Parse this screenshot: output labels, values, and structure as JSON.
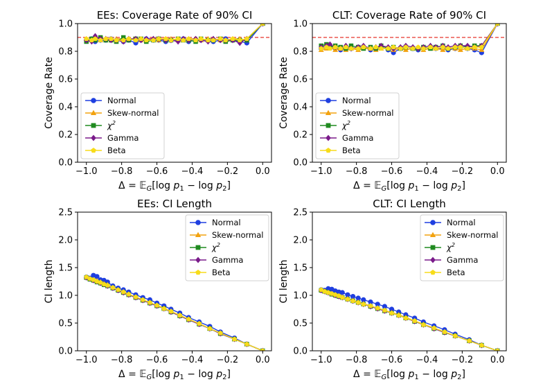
{
  "chart_data": [
    {
      "type": "line",
      "title": "EEs: Coverage Rate of 90% CI",
      "xlabel": "Δ = 𝔼G[log p₁ − log p₂]",
      "ylabel": "Coverage Rate",
      "xlim": [
        -1.05,
        0.05
      ],
      "ylim": [
        0.0,
        1.0
      ],
      "xticks": [
        -1.0,
        -0.8,
        -0.6,
        -0.4,
        -0.2,
        0.0
      ],
      "xtick_labels": [
        "−1.0",
        "−0.8",
        "−0.6",
        "−0.4",
        "−0.2",
        "0.0"
      ],
      "yticks": [
        0.0,
        0.2,
        0.4,
        0.6,
        0.8,
        1.0
      ],
      "ytick_labels": [
        "0.0",
        "0.2",
        "0.4",
        "0.6",
        "0.8",
        "1.0"
      ],
      "reference_line": {
        "y": 0.9,
        "style": "dashed",
        "color": "#e8342c"
      },
      "legend_position": "lower-left",
      "x": [
        -1.0,
        -0.97,
        -0.95,
        -0.92,
        -0.89,
        -0.86,
        -0.83,
        -0.79,
        -0.76,
        -0.72,
        -0.69,
        -0.66,
        -0.62,
        -0.59,
        -0.55,
        -0.52,
        -0.48,
        -0.45,
        -0.42,
        -0.38,
        -0.35,
        -0.31,
        -0.28,
        -0.24,
        -0.21,
        -0.17,
        -0.13,
        -0.09,
        0.0
      ],
      "series": [
        {
          "name": "Normal",
          "color": "#1f3fe0",
          "marker": "circle",
          "values": [
            0.88,
            0.89,
            0.87,
            0.88,
            0.88,
            0.89,
            0.88,
            0.87,
            0.88,
            0.86,
            0.88,
            0.89,
            0.88,
            0.88,
            0.87,
            0.88,
            0.88,
            0.89,
            0.87,
            0.88,
            0.88,
            0.88,
            0.87,
            0.88,
            0.89,
            0.88,
            0.87,
            0.86,
            1.0
          ]
        },
        {
          "name": "Skew-normal",
          "color": "#f2a20f",
          "marker": "triangle",
          "values": [
            0.89,
            0.88,
            0.9,
            0.88,
            0.89,
            0.88,
            0.89,
            0.89,
            0.88,
            0.89,
            0.88,
            0.88,
            0.89,
            0.88,
            0.89,
            0.89,
            0.88,
            0.88,
            0.89,
            0.89,
            0.88,
            0.89,
            0.89,
            0.88,
            0.88,
            0.89,
            0.89,
            0.88,
            1.0
          ]
        },
        {
          "name": "χ²",
          "color": "#1f8a1f",
          "marker": "square",
          "values": [
            0.87,
            0.89,
            0.88,
            0.9,
            0.88,
            0.88,
            0.87,
            0.9,
            0.88,
            0.89,
            0.89,
            0.87,
            0.88,
            0.89,
            0.88,
            0.88,
            0.89,
            0.88,
            0.88,
            0.87,
            0.89,
            0.88,
            0.88,
            0.89,
            0.87,
            0.88,
            0.88,
            0.88,
            1.0
          ]
        },
        {
          "name": "Gamma",
          "color": "#7a1a8a",
          "marker": "diamond",
          "values": [
            0.88,
            0.87,
            0.91,
            0.89,
            0.89,
            0.88,
            0.88,
            0.87,
            0.89,
            0.89,
            0.88,
            0.89,
            0.89,
            0.89,
            0.88,
            0.88,
            0.87,
            0.89,
            0.88,
            0.89,
            0.88,
            0.87,
            0.89,
            0.88,
            0.88,
            0.88,
            0.86,
            0.89,
            1.0
          ]
        },
        {
          "name": "Beta",
          "color": "#f7dc1a",
          "marker": "pentagon",
          "values": [
            0.89,
            0.88,
            0.89,
            0.88,
            0.89,
            0.89,
            0.88,
            0.88,
            0.89,
            0.88,
            0.89,
            0.88,
            0.88,
            0.89,
            0.89,
            0.88,
            0.89,
            0.88,
            0.89,
            0.88,
            0.89,
            0.88,
            0.88,
            0.89,
            0.88,
            0.89,
            0.88,
            0.89,
            1.0
          ]
        }
      ]
    },
    {
      "type": "line",
      "title": "CLT: Coverage Rate of 90% CI",
      "xlabel": "Δ = 𝔼G[log p₁ − log p₂]",
      "ylabel": "Coverage Rate",
      "xlim": [
        -1.05,
        0.05
      ],
      "ylim": [
        0.0,
        1.0
      ],
      "xticks": [
        -1.0,
        -0.8,
        -0.6,
        -0.4,
        -0.2,
        0.0
      ],
      "xtick_labels": [
        "−1.0",
        "−0.8",
        "−0.6",
        "−0.4",
        "−0.2",
        "0.0"
      ],
      "yticks": [
        0.0,
        0.2,
        0.4,
        0.6,
        0.8,
        1.0
      ],
      "ytick_labels": [
        "0.0",
        "0.2",
        "0.4",
        "0.6",
        "0.8",
        "1.0"
      ],
      "reference_line": {
        "y": 0.9,
        "style": "dashed",
        "color": "#e8342c"
      },
      "legend_position": "lower-left",
      "x": [
        -1.0,
        -0.97,
        -0.95,
        -0.92,
        -0.89,
        -0.86,
        -0.83,
        -0.79,
        -0.76,
        -0.72,
        -0.69,
        -0.66,
        -0.62,
        -0.59,
        -0.55,
        -0.52,
        -0.48,
        -0.45,
        -0.42,
        -0.38,
        -0.35,
        -0.31,
        -0.28,
        -0.24,
        -0.21,
        -0.17,
        -0.13,
        -0.09,
        0.0
      ],
      "series": [
        {
          "name": "Normal",
          "color": "#1f3fe0",
          "marker": "circle",
          "values": [
            0.82,
            0.83,
            0.84,
            0.82,
            0.81,
            0.83,
            0.82,
            0.82,
            0.83,
            0.81,
            0.82,
            0.83,
            0.81,
            0.79,
            0.82,
            0.83,
            0.82,
            0.81,
            0.82,
            0.83,
            0.82,
            0.82,
            0.81,
            0.82,
            0.83,
            0.82,
            0.81,
            0.79,
            1.0
          ]
        },
        {
          "name": "Skew-normal",
          "color": "#f2a20f",
          "marker": "triangle",
          "values": [
            0.81,
            0.82,
            0.83,
            0.81,
            0.82,
            0.81,
            0.82,
            0.81,
            0.82,
            0.82,
            0.81,
            0.82,
            0.82,
            0.81,
            0.82,
            0.81,
            0.82,
            0.82,
            0.81,
            0.82,
            0.82,
            0.81,
            0.82,
            0.82,
            0.81,
            0.82,
            0.82,
            0.81,
            1.0
          ]
        },
        {
          "name": "χ²",
          "color": "#1f8a1f",
          "marker": "square",
          "values": [
            0.84,
            0.85,
            0.83,
            0.84,
            0.83,
            0.82,
            0.84,
            0.83,
            0.82,
            0.83,
            0.82,
            0.84,
            0.82,
            0.83,
            0.82,
            0.83,
            0.82,
            0.82,
            0.83,
            0.82,
            0.83,
            0.84,
            0.82,
            0.83,
            0.84,
            0.83,
            0.84,
            0.84,
            1.0
          ]
        },
        {
          "name": "Gamma",
          "color": "#7a1a8a",
          "marker": "diamond",
          "values": [
            0.83,
            0.84,
            0.85,
            0.83,
            0.82,
            0.84,
            0.82,
            0.83,
            0.84,
            0.82,
            0.83,
            0.84,
            0.83,
            0.82,
            0.83,
            0.84,
            0.83,
            0.82,
            0.83,
            0.84,
            0.83,
            0.84,
            0.83,
            0.84,
            0.84,
            0.84,
            0.83,
            0.84,
            1.0
          ]
        },
        {
          "name": "Beta",
          "color": "#f7dc1a",
          "marker": "pentagon",
          "values": [
            0.82,
            0.83,
            0.82,
            0.83,
            0.82,
            0.83,
            0.82,
            0.82,
            0.83,
            0.82,
            0.83,
            0.82,
            0.82,
            0.83,
            0.82,
            0.83,
            0.82,
            0.83,
            0.82,
            0.83,
            0.82,
            0.83,
            0.82,
            0.83,
            0.83,
            0.82,
            0.83,
            0.83,
            1.0
          ]
        }
      ]
    },
    {
      "type": "line",
      "title": "EEs: CI Length",
      "xlabel": "Δ = 𝔼G[log p₁ − log p₂]",
      "ylabel": "CI length",
      "xlim": [
        -1.05,
        0.05
      ],
      "ylim": [
        0.0,
        2.5
      ],
      "xticks": [
        -1.0,
        -0.8,
        -0.6,
        -0.4,
        -0.2,
        0.0
      ],
      "xtick_labels": [
        "−1.0",
        "−0.8",
        "−0.6",
        "−0.4",
        "−0.2",
        "0.0"
      ],
      "yticks": [
        0.0,
        0.5,
        1.0,
        1.5,
        2.0,
        2.5
      ],
      "ytick_labels": [
        "0.0",
        "0.5",
        "1.0",
        "1.5",
        "2.0",
        "2.5"
      ],
      "legend_position": "upper-right",
      "x": [
        -1.0,
        -0.98,
        -0.96,
        -0.94,
        -0.92,
        -0.9,
        -0.88,
        -0.85,
        -0.82,
        -0.79,
        -0.76,
        -0.72,
        -0.68,
        -0.64,
        -0.6,
        -0.56,
        -0.52,
        -0.47,
        -0.42,
        -0.36,
        -0.3,
        -0.24,
        -0.16,
        -0.09,
        0.0
      ],
      "series": [
        {
          "name": "Normal",
          "color": "#1f3fe0",
          "marker": "circle",
          "values": [
            1.33,
            1.31,
            1.36,
            1.34,
            1.28,
            1.27,
            1.24,
            1.17,
            1.13,
            1.1,
            1.06,
            1.01,
            0.96,
            0.92,
            0.86,
            0.81,
            0.75,
            0.68,
            0.6,
            0.52,
            0.44,
            0.34,
            0.23,
            0.12,
            0.0
          ]
        },
        {
          "name": "Skew-normal",
          "color": "#f2a20f",
          "marker": "triangle",
          "values": [
            1.33,
            1.3,
            1.28,
            1.26,
            1.24,
            1.21,
            1.19,
            1.14,
            1.1,
            1.06,
            1.02,
            0.97,
            0.92,
            0.87,
            0.82,
            0.77,
            0.71,
            0.64,
            0.57,
            0.49,
            0.4,
            0.32,
            0.21,
            0.12,
            0.0
          ]
        },
        {
          "name": "χ²",
          "color": "#1f8a1f",
          "marker": "square",
          "values": [
            1.32,
            1.29,
            1.27,
            1.24,
            1.22,
            1.19,
            1.17,
            1.13,
            1.09,
            1.05,
            1.01,
            0.96,
            0.91,
            0.86,
            0.81,
            0.76,
            0.7,
            0.63,
            0.56,
            0.48,
            0.4,
            0.31,
            0.21,
            0.12,
            0.0
          ]
        },
        {
          "name": "Gamma",
          "color": "#7a1a8a",
          "marker": "diamond",
          "values": [
            1.32,
            1.3,
            1.27,
            1.25,
            1.22,
            1.2,
            1.17,
            1.13,
            1.09,
            1.05,
            1.01,
            0.96,
            0.91,
            0.86,
            0.81,
            0.76,
            0.7,
            0.63,
            0.56,
            0.48,
            0.4,
            0.31,
            0.21,
            0.12,
            0.0
          ]
        },
        {
          "name": "Beta",
          "color": "#f7dc1a",
          "marker": "pentagon",
          "values": [
            1.33,
            1.3,
            1.28,
            1.25,
            1.23,
            1.2,
            1.18,
            1.14,
            1.1,
            1.06,
            1.02,
            0.97,
            0.92,
            0.87,
            0.82,
            0.76,
            0.71,
            0.64,
            0.57,
            0.49,
            0.4,
            0.32,
            0.21,
            0.12,
            0.0
          ]
        }
      ]
    },
    {
      "type": "line",
      "title": "CLT: CI Length",
      "xlabel": "Δ = 𝔼G[log p₁ − log p₂]",
      "ylabel": "CI length",
      "xlim": [
        -1.05,
        0.05
      ],
      "ylim": [
        0.0,
        2.5
      ],
      "xticks": [
        -1.0,
        -0.8,
        -0.6,
        -0.4,
        -0.2,
        0.0
      ],
      "xtick_labels": [
        "−1.0",
        "−0.8",
        "−0.6",
        "−0.4",
        "−0.2",
        "0.0"
      ],
      "yticks": [
        0.0,
        0.5,
        1.0,
        1.5,
        2.0,
        2.5
      ],
      "ytick_labels": [
        "0.0",
        "0.5",
        "1.0",
        "1.5",
        "2.0",
        "2.5"
      ],
      "legend_position": "upper-right",
      "x": [
        -1.0,
        -0.98,
        -0.96,
        -0.94,
        -0.92,
        -0.9,
        -0.88,
        -0.85,
        -0.82,
        -0.79,
        -0.76,
        -0.72,
        -0.68,
        -0.64,
        -0.6,
        -0.56,
        -0.52,
        -0.47,
        -0.42,
        -0.36,
        -0.3,
        -0.24,
        -0.16,
        -0.09,
        0.0
      ],
      "series": [
        {
          "name": "Normal",
          "color": "#1f3fe0",
          "marker": "circle",
          "values": [
            1.1,
            1.09,
            1.12,
            1.11,
            1.08,
            1.06,
            1.05,
            1.01,
            0.98,
            0.95,
            0.92,
            0.88,
            0.84,
            0.8,
            0.75,
            0.7,
            0.65,
            0.59,
            0.52,
            0.45,
            0.38,
            0.3,
            0.2,
            0.1,
            0.0
          ]
        },
        {
          "name": "Skew-normal",
          "color": "#f2a20f",
          "marker": "triangle",
          "values": [
            1.1,
            1.07,
            1.05,
            1.03,
            1.01,
            0.99,
            0.97,
            0.94,
            0.91,
            0.88,
            0.85,
            0.81,
            0.77,
            0.73,
            0.69,
            0.65,
            0.6,
            0.54,
            0.48,
            0.41,
            0.34,
            0.27,
            0.18,
            0.1,
            0.0
          ]
        },
        {
          "name": "χ²",
          "color": "#1f8a1f",
          "marker": "square",
          "values": [
            1.09,
            1.07,
            1.05,
            1.02,
            1.0,
            0.98,
            0.96,
            0.93,
            0.9,
            0.87,
            0.84,
            0.8,
            0.76,
            0.72,
            0.68,
            0.64,
            0.59,
            0.53,
            0.47,
            0.4,
            0.33,
            0.27,
            0.18,
            0.1,
            0.0
          ]
        },
        {
          "name": "Gamma",
          "color": "#7a1a8a",
          "marker": "diamond",
          "values": [
            1.09,
            1.07,
            1.05,
            1.03,
            1.0,
            0.98,
            0.96,
            0.93,
            0.9,
            0.87,
            0.84,
            0.8,
            0.76,
            0.72,
            0.68,
            0.64,
            0.59,
            0.53,
            0.47,
            0.4,
            0.33,
            0.27,
            0.18,
            0.1,
            0.0
          ]
        },
        {
          "name": "Beta",
          "color": "#f7dc1a",
          "marker": "pentagon",
          "values": [
            1.1,
            1.07,
            1.05,
            1.03,
            1.01,
            0.99,
            0.96,
            0.93,
            0.9,
            0.87,
            0.84,
            0.81,
            0.77,
            0.73,
            0.68,
            0.64,
            0.59,
            0.54,
            0.47,
            0.41,
            0.34,
            0.27,
            0.18,
            0.1,
            0.0
          ]
        }
      ]
    }
  ]
}
